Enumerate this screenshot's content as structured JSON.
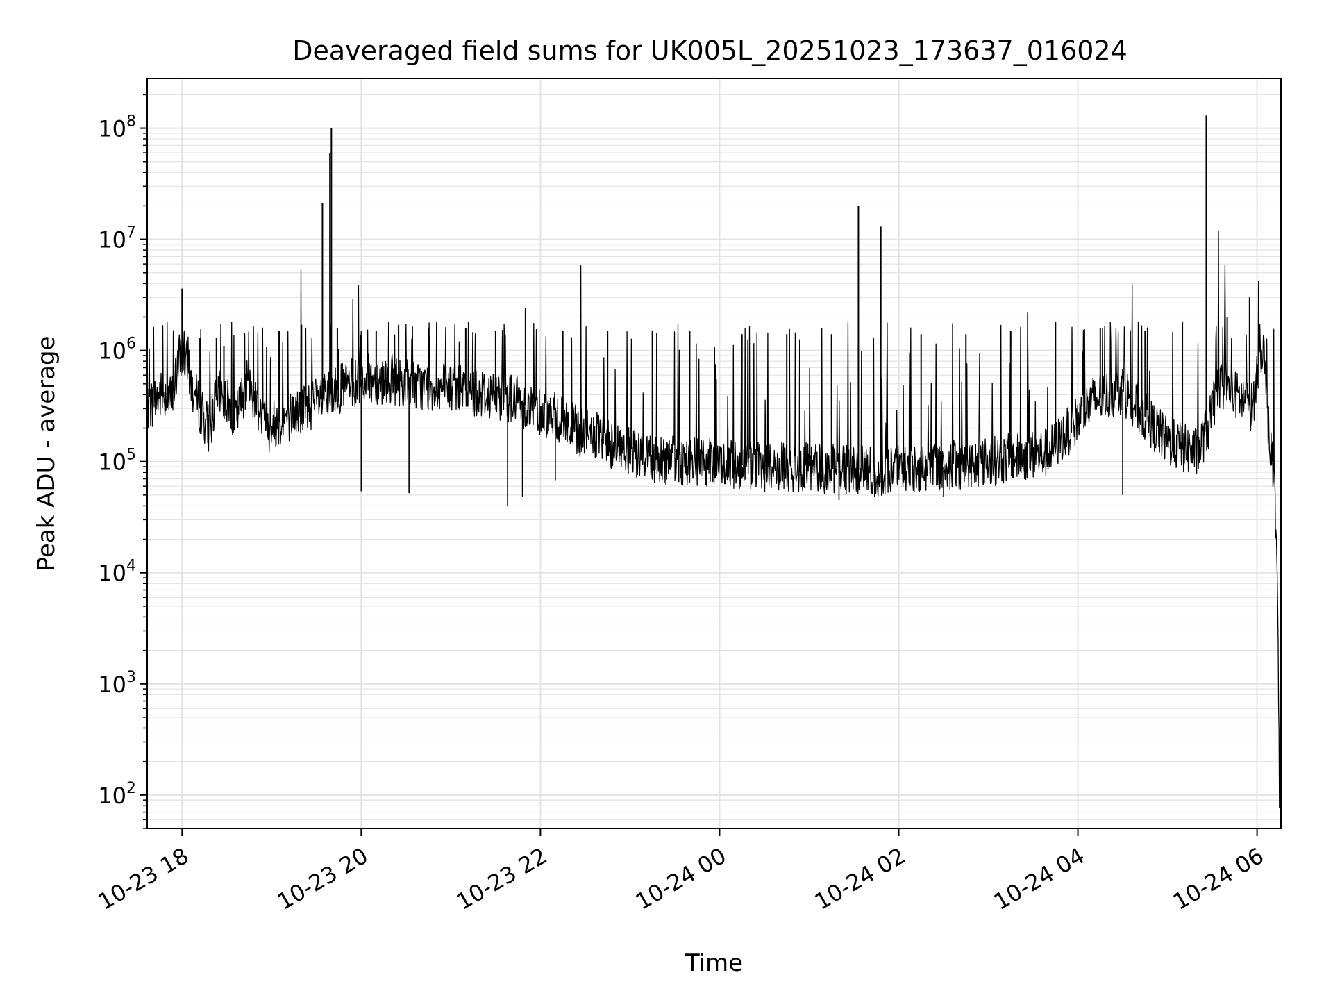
{
  "chart_data": {
    "type": "line",
    "title": "Deaveraged field sums for UK005L_20251023_173637_016024",
    "xlabel": "Time",
    "ylabel": "Peak ADU - average",
    "yscale": "log",
    "ylim": [
      50,
      280000000
    ],
    "xlim": [
      "2025-10-23 17:36:37",
      "2025-10-24 06:16:00"
    ],
    "grid": true,
    "line_color": "#000000",
    "grid_color": "#e3e3e3",
    "x_ticks": [
      {
        "t": "2025-10-23 18:00",
        "label": "10-23 18"
      },
      {
        "t": "2025-10-23 20:00",
        "label": "10-23 20"
      },
      {
        "t": "2025-10-23 22:00",
        "label": "10-23 22"
      },
      {
        "t": "2025-10-24 00:00",
        "label": "10-24 00"
      },
      {
        "t": "2025-10-24 02:00",
        "label": "10-24 02"
      },
      {
        "t": "2025-10-24 04:00",
        "label": "10-24 04"
      },
      {
        "t": "2025-10-24 06:00",
        "label": "10-24 06"
      }
    ],
    "y_ticks": [
      {
        "v": 100,
        "base": "10",
        "exp": "2"
      },
      {
        "v": 1000,
        "base": "10",
        "exp": "3"
      },
      {
        "v": 10000,
        "base": "10",
        "exp": "4"
      },
      {
        "v": 100000,
        "base": "10",
        "exp": "5"
      },
      {
        "v": 1000000,
        "base": "10",
        "exp": "6"
      },
      {
        "v": 10000000,
        "base": "10",
        "exp": "7"
      },
      {
        "v": 100000000,
        "base": "10",
        "exp": "8"
      }
    ],
    "series": [
      {
        "x": [
          "2025-10-23 17:36",
          "2025-10-23 17:44",
          "2025-10-23 17:48",
          "2025-10-23 17:53",
          "2025-10-23 17:57",
          "2025-10-23 17:59",
          "2025-10-23 18:02",
          "2025-10-23 18:07",
          "2025-10-23 18:12",
          "2025-10-23 18:18",
          "2025-10-23 18:24",
          "2025-10-23 18:30",
          "2025-10-23 18:36",
          "2025-10-23 18:43",
          "2025-10-23 18:50",
          "2025-10-23 18:57",
          "2025-10-23 19:10",
          "2025-10-23 19:25",
          "2025-10-23 19:38",
          "2025-10-23 19:41",
          "2025-10-23 19:50",
          "2025-10-23 20:00",
          "2025-10-23 20:20",
          "2025-10-23 20:40",
          "2025-10-23 21:00",
          "2025-10-23 21:20",
          "2025-10-23 21:40",
          "2025-10-23 21:55",
          "2025-10-23 22:10",
          "2025-10-23 22:25",
          "2025-10-23 22:40",
          "2025-10-23 23:00",
          "2025-10-23 23:20",
          "2025-10-23 23:40",
          "2025-10-24 00:00",
          "2025-10-24 00:30",
          "2025-10-24 01:00",
          "2025-10-24 01:30",
          "2025-10-24 01:45",
          "2025-10-24 02:00",
          "2025-10-24 02:30",
          "2025-10-24 03:00",
          "2025-10-24 03:20",
          "2025-10-24 03:40",
          "2025-10-24 03:55",
          "2025-10-24 04:10",
          "2025-10-24 04:30",
          "2025-10-24 04:40",
          "2025-10-24 05:00",
          "2025-10-24 05:20",
          "2025-10-24 05:27",
          "2025-10-24 05:35",
          "2025-10-24 05:45",
          "2025-10-24 05:53",
          "2025-10-24 05:57",
          "2025-10-24 06:01",
          "2025-10-24 06:04",
          "2025-10-24 06:07",
          "2025-10-24 06:10",
          "2025-10-24 06:12",
          "2025-10-24 06:14",
          "2025-10-24 06:15"
        ],
        "y": [
          300000,
          380000,
          420000,
          350000,
          700000,
          950000,
          850000,
          450000,
          300000,
          200000,
          400000,
          350000,
          250000,
          500000,
          350000,
          200000,
          250000,
          320000,
          380000,
          420000,
          480000,
          550000,
          550000,
          480000,
          450000,
          420000,
          380000,
          300000,
          250000,
          190000,
          160000,
          120000,
          105000,
          100000,
          95000,
          90000,
          88000,
          85000,
          80000,
          85000,
          90000,
          100000,
          110000,
          120000,
          200000,
          350000,
          450000,
          300000,
          150000,
          120000,
          200000,
          500000,
          400000,
          350000,
          300000,
          800000,
          1200000,
          250000,
          100000,
          60000,
          3000,
          100
        ]
      }
    ],
    "spikes": [
      {
        "t": "2025-10-23 18:00",
        "v": 3600000
      },
      {
        "t": "2025-10-23 18:12",
        "v": 1300000
      },
      {
        "t": "2025-10-23 18:23",
        "v": 1300000
      },
      {
        "t": "2025-10-23 18:28",
        "v": 1100000
      },
      {
        "t": "2025-10-23 19:05",
        "v": 1500000
      },
      {
        "t": "2025-10-23 19:20",
        "v": 1700000
      },
      {
        "t": "2025-10-23 19:34",
        "v": 21000000
      },
      {
        "t": "2025-10-23 19:39",
        "v": 60000000
      },
      {
        "t": "2025-10-23 19:40",
        "v": 100000000
      },
      {
        "t": "2025-10-23 19:44",
        "v": 1600000
      },
      {
        "t": "2025-10-23 20:10",
        "v": 1500000
      },
      {
        "t": "2025-10-23 20:25",
        "v": 1700000
      },
      {
        "t": "2025-10-23 20:45",
        "v": 1600000
      },
      {
        "t": "2025-10-23 21:10",
        "v": 1600000
      },
      {
        "t": "2025-10-23 21:30",
        "v": 1500000
      },
      {
        "t": "2025-10-23 21:50",
        "v": 2400000
      },
      {
        "t": "2025-10-23 22:15",
        "v": 1500000
      },
      {
        "t": "2025-10-23 22:45",
        "v": 1500000
      },
      {
        "t": "2025-10-23 23:15",
        "v": 1500000
      },
      {
        "t": "2025-10-23 23:40",
        "v": 1500000
      },
      {
        "t": "2025-10-24 00:15",
        "v": 1400000
      },
      {
        "t": "2025-10-24 00:45",
        "v": 1400000
      },
      {
        "t": "2025-10-24 01:15",
        "v": 1400000
      },
      {
        "t": "2025-10-24 01:33",
        "v": 20000000
      },
      {
        "t": "2025-10-24 01:48",
        "v": 13000000
      },
      {
        "t": "2025-10-24 02:15",
        "v": 1400000
      },
      {
        "t": "2025-10-24 02:45",
        "v": 1400000
      },
      {
        "t": "2025-10-24 03:15",
        "v": 1500000
      },
      {
        "t": "2025-10-24 03:45",
        "v": 1800000
      },
      {
        "t": "2025-10-24 04:15",
        "v": 1600000
      },
      {
        "t": "2025-10-24 04:45",
        "v": 1500000
      },
      {
        "t": "2025-10-24 05:10",
        "v": 1800000
      },
      {
        "t": "2025-10-24 05:26",
        "v": 130000000
      },
      {
        "t": "2025-10-24 05:40",
        "v": 2000000
      },
      {
        "t": "2025-10-24 05:55",
        "v": 3000000
      }
    ],
    "dips": [
      {
        "t": "2025-10-23 20:00",
        "v": 54000
      },
      {
        "t": "2025-10-23 20:32",
        "v": 52000
      },
      {
        "t": "2025-10-23 21:38",
        "v": 40000
      },
      {
        "t": "2025-10-23 21:48",
        "v": 48000
      },
      {
        "t": "2025-10-23 22:10",
        "v": 68000
      },
      {
        "t": "2025-10-24 01:20",
        "v": 45000
      },
      {
        "t": "2025-10-24 02:30",
        "v": 48000
      },
      {
        "t": "2025-10-24 04:30",
        "v": 50000
      }
    ]
  }
}
